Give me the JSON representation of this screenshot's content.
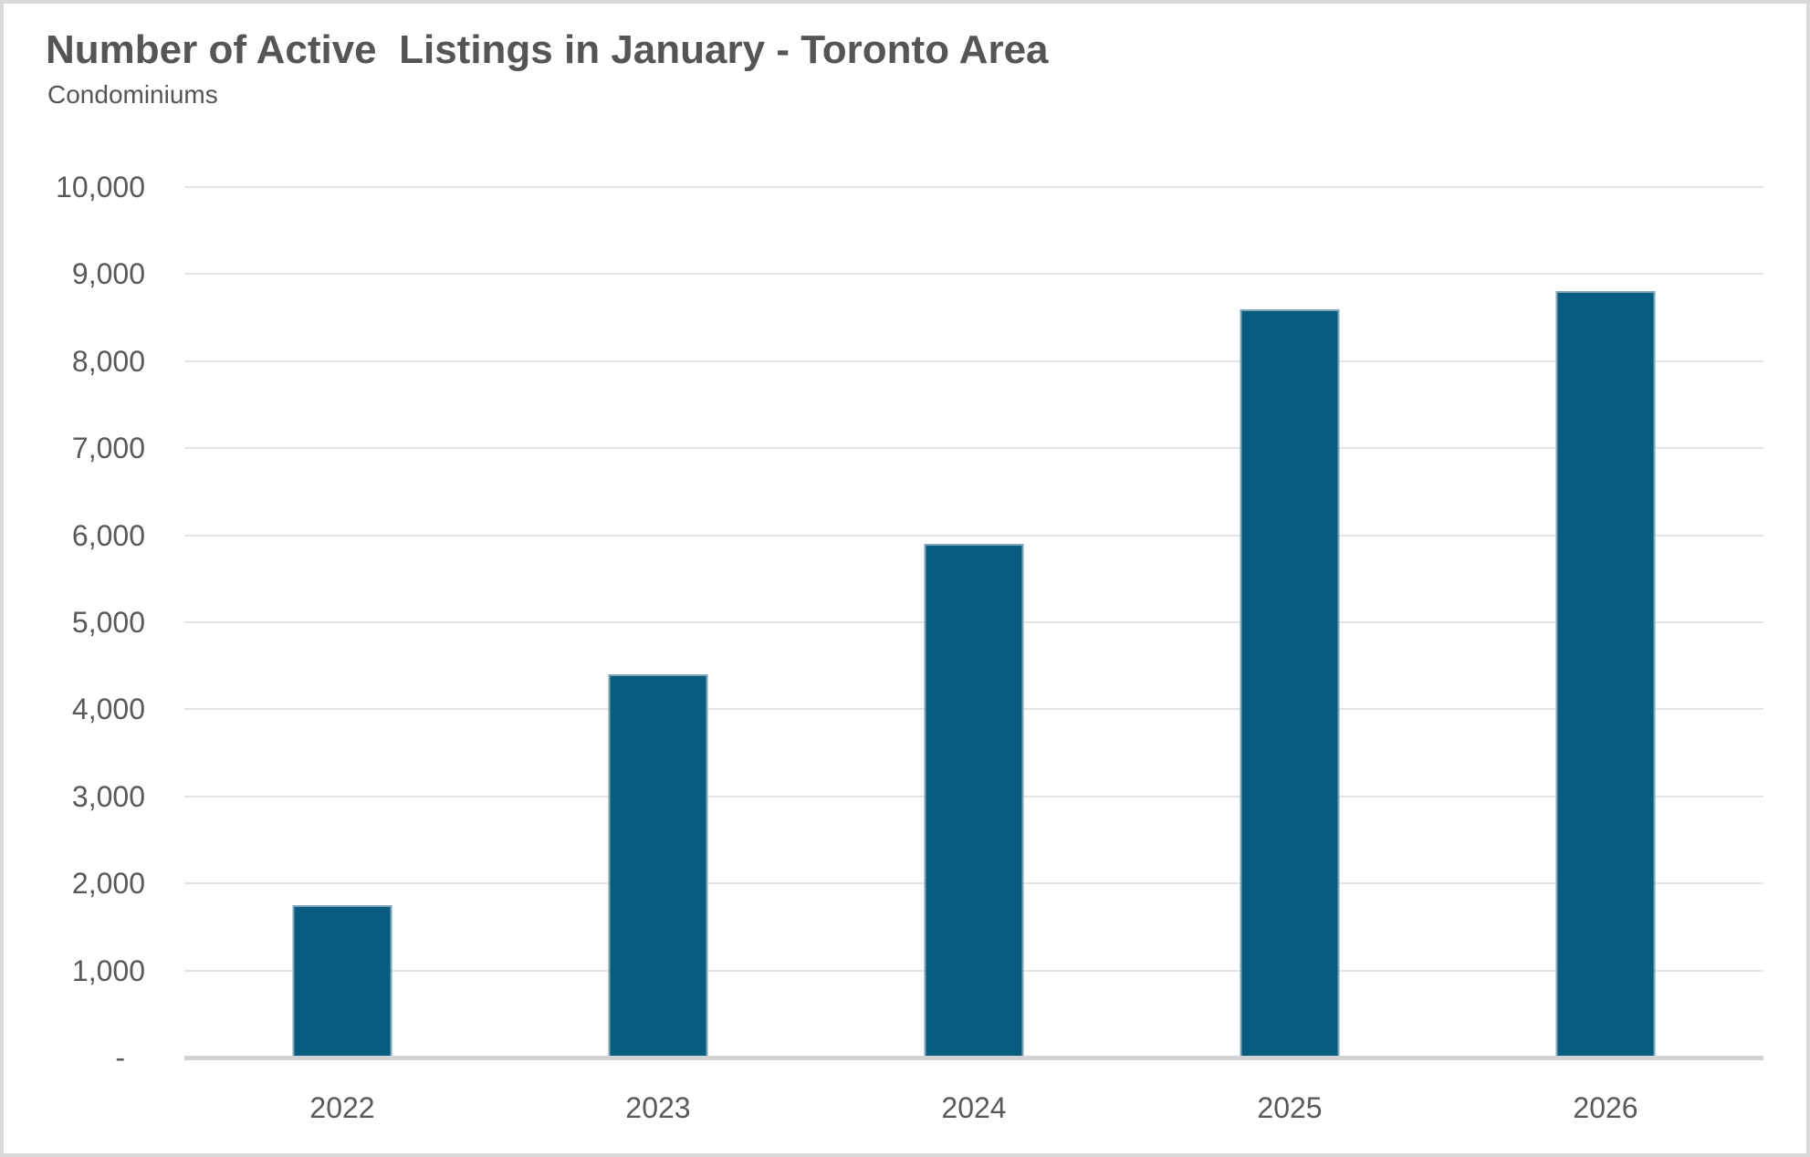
{
  "chart_data": {
    "type": "bar",
    "title": "Number of Active  Listings in January - Toronto Area",
    "subtitle": "Condominiums",
    "categories": [
      "2022",
      "2023",
      "2024",
      "2025",
      "2026"
    ],
    "values": [
      1750,
      4400,
      5900,
      8600,
      8800
    ],
    "xlabel": "",
    "ylabel": "",
    "ylim": [
      0,
      10000
    ],
    "ytick_step": 1000,
    "ytick_labels": [
      "-",
      "1,000",
      "2,000",
      "3,000",
      "4,000",
      "5,000",
      "6,000",
      "7,000",
      "8,000",
      "9,000",
      "10,000"
    ],
    "grid": true,
    "legend_position": "none",
    "bar_color": "#075C80",
    "bar_border_color": "#7FA6B6",
    "text_color": "#595959",
    "frame_color": "#d9d9d9"
  }
}
